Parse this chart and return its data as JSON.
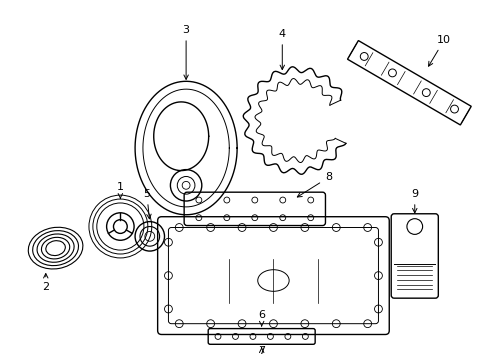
{
  "background_color": "#ffffff",
  "line_color": "#000000",
  "line_width": 1.0,
  "label_fontsize": 8,
  "figsize": [
    4.89,
    3.6
  ],
  "dpi": 100
}
